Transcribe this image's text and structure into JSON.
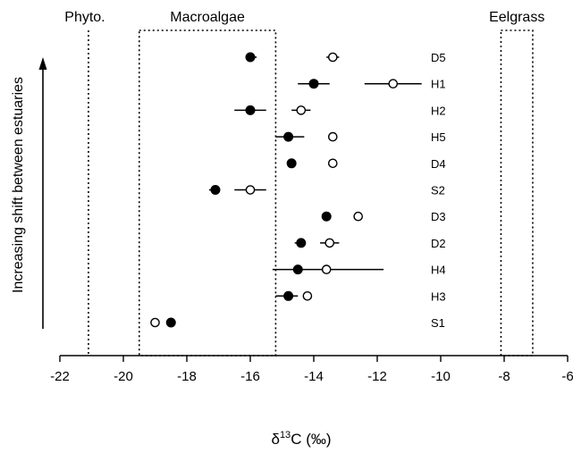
{
  "chart_data": {
    "type": "scatter",
    "xlabel": "δ13C (‰)",
    "xlabel_parts": {
      "delta": "δ",
      "superscript": "13",
      "rest": "C (‰)"
    },
    "ylabel": "Increasing shift between estuaries",
    "xlim": [
      -22,
      -6
    ],
    "xticks": [
      -22,
      -20,
      -18,
      -16,
      -14,
      -12,
      -10,
      -8,
      -6
    ],
    "xtick_labels": [
      "-22",
      "-20",
      "-18",
      "-16",
      "-14",
      "-12",
      "-10",
      "-8",
      "-6"
    ],
    "regions": [
      {
        "label": "Phyto.",
        "x_right": -21.1
      },
      {
        "label": "Macroalgae",
        "x_range": [
          -19.5,
          -15.2
        ]
      },
      {
        "label": "Eelgrass",
        "x_range": [
          -8.1,
          -7.1
        ]
      }
    ],
    "categories": [
      "D5",
      "H1",
      "H2",
      "H5",
      "D4",
      "S2",
      "D3",
      "D2",
      "H4",
      "H3",
      "S1"
    ],
    "series": [
      {
        "marker": "filled",
        "values": [
          -16.0,
          -14.0,
          -16.0,
          -14.8,
          -14.7,
          -17.1,
          -13.6,
          -14.4,
          -14.5,
          -14.8,
          -18.5
        ],
        "err_low": [
          null,
          -14.5,
          -16.5,
          -15.2,
          null,
          -17.3,
          null,
          -14.6,
          -15.3,
          -15.2,
          null
        ],
        "err_high": [
          -15.8,
          -13.5,
          -15.5,
          -14.3,
          null,
          null,
          null,
          null,
          -11.8,
          -14.5,
          null
        ]
      },
      {
        "marker": "open",
        "values": [
          -13.4,
          -11.5,
          -14.4,
          -13.4,
          -13.4,
          -16.0,
          -12.6,
          -13.5,
          -13.6,
          -14.2,
          -19.0
        ],
        "err_low": [
          -13.6,
          -12.4,
          -14.7,
          null,
          null,
          -16.5,
          null,
          -13.8,
          null,
          null,
          null
        ],
        "err_high": [
          -13.2,
          -10.6,
          -14.1,
          null,
          null,
          -15.5,
          null,
          -13.2,
          null,
          null,
          null
        ]
      }
    ]
  }
}
